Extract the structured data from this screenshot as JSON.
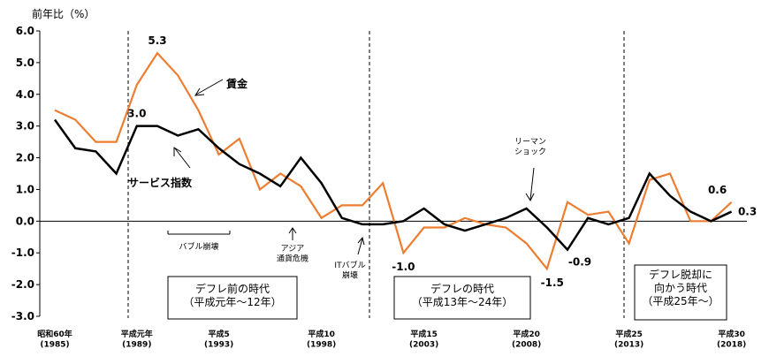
{
  "chart_data": {
    "type": "line",
    "y_axis_label": "前年比（%）",
    "categories": [
      "昭和60年\n(1985)",
      null,
      null,
      null,
      "平成元年\n(1989)",
      null,
      null,
      null,
      "平成5\n(1993)",
      null,
      null,
      null,
      null,
      "平成10\n(1998)",
      null,
      null,
      null,
      null,
      "平成15\n(2003)",
      null,
      null,
      null,
      null,
      "平成20\n(2008)",
      null,
      null,
      null,
      null,
      "平成25\n(2013)",
      null,
      null,
      null,
      null,
      "平成30\n(2018)"
    ],
    "series": [
      {
        "name": "賃金",
        "color": "#ed7d31",
        "values": [
          3.5,
          3.2,
          2.5,
          2.5,
          4.3,
          5.3,
          4.6,
          3.5,
          2.1,
          2.6,
          1.0,
          1.5,
          1.1,
          0.1,
          0.5,
          0.5,
          1.2,
          -1.0,
          -0.2,
          -0.2,
          0.1,
          -0.1,
          -0.2,
          -0.7,
          -1.5,
          0.6,
          0.2,
          0.3,
          -0.7,
          1.3,
          1.5,
          0.0,
          0.0,
          0.6
        ],
        "value_labels": [
          null,
          null,
          null,
          null,
          null,
          "5.3",
          null,
          null,
          null,
          null,
          null,
          null,
          null,
          null,
          null,
          null,
          null,
          "-1.0",
          null,
          null,
          null,
          null,
          null,
          null,
          "-1.5",
          null,
          null,
          null,
          null,
          null,
          null,
          null,
          null,
          "0.6"
        ]
      },
      {
        "name": "サービス指数",
        "color": "#000000",
        "values": [
          3.2,
          2.3,
          2.2,
          1.5,
          3.0,
          3.0,
          2.7,
          2.9,
          2.3,
          1.8,
          1.5,
          1.1,
          2.0,
          1.2,
          0.1,
          -0.1,
          -0.1,
          0.0,
          0.4,
          -0.1,
          -0.3,
          -0.1,
          0.1,
          0.4,
          -0.2,
          -0.9,
          0.1,
          -0.1,
          0.1,
          1.5,
          0.8,
          0.3,
          0.0,
          0.3
        ],
        "value_labels": [
          null,
          null,
          null,
          null,
          "3.0",
          null,
          null,
          null,
          null,
          null,
          null,
          null,
          null,
          null,
          null,
          null,
          null,
          null,
          null,
          null,
          null,
          null,
          null,
          null,
          null,
          "-0.9",
          null,
          null,
          null,
          null,
          null,
          null,
          null,
          "0.3"
        ]
      }
    ],
    "annotations": [
      "リーマン\nショック",
      "バブル崩壊",
      "アジア\n通貨危機",
      "ITバブル\n崩壊"
    ],
    "periods": [
      "デフレ前の時代\n（平成元年～12年）",
      "デフレの時代\n（平成13年～24年）",
      "デフレ脱却に\n向かう時代\n（平成25年～）"
    ],
    "ylim": [
      -3,
      6
    ],
    "yticks": [
      {
        "value": -3,
        "label": "-3.0"
      },
      {
        "value": -2,
        "label": "-2.0"
      },
      {
        "value": -1,
        "label": "-1.0"
      },
      {
        "value": 0,
        "label": "0.0"
      },
      {
        "value": 1,
        "label": "1.0"
      },
      {
        "value": 2,
        "label": "2.0"
      },
      {
        "value": 3,
        "label": "3.0"
      },
      {
        "value": 4,
        "label": "4.0"
      },
      {
        "value": 5,
        "label": "5.0"
      },
      {
        "value": 6,
        "label": "6.0"
      }
    ],
    "grid": false
  }
}
